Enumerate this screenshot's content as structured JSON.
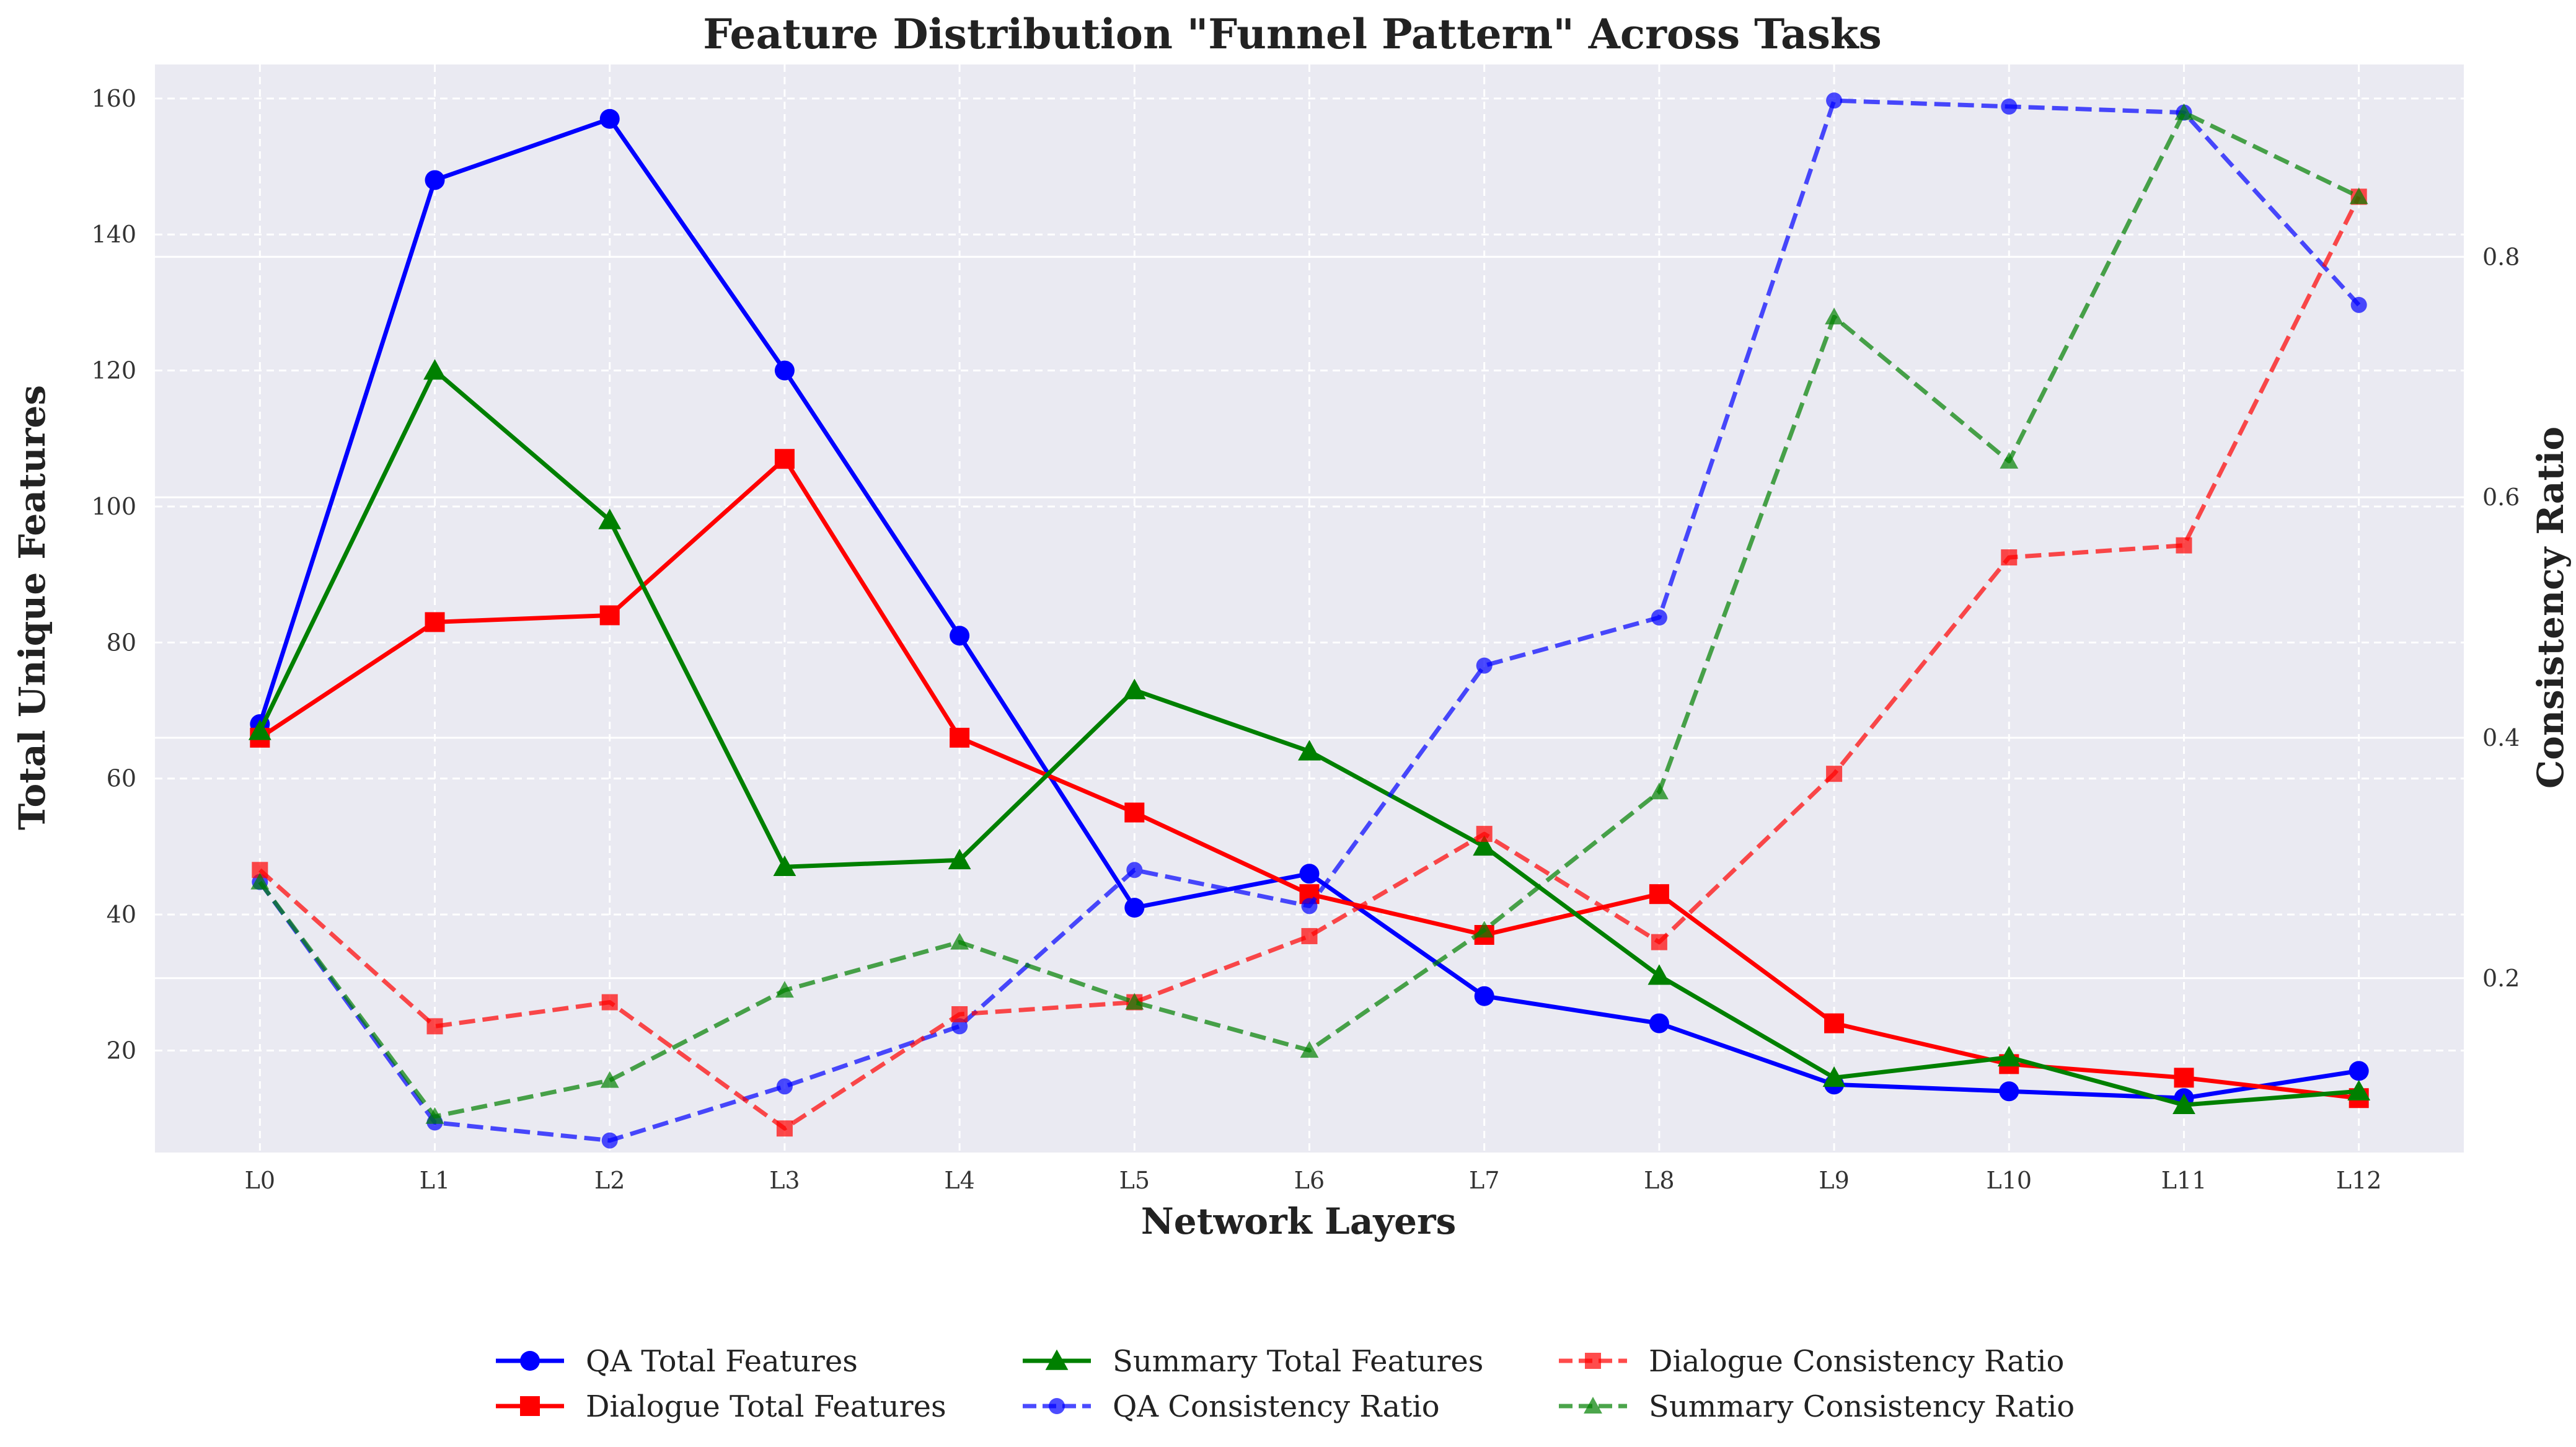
{
  "chart_data": {
    "type": "line",
    "title": "Feature Distribution \"Funnel Pattern\" Across Tasks",
    "xlabel": "Network Layers",
    "ylabel": "Total Unique Features",
    "y2label": "Consistency Ratio",
    "categories": [
      "L0",
      "L1",
      "L2",
      "L3",
      "L4",
      "L5",
      "L6",
      "L7",
      "L8",
      "L9",
      "L10",
      "L11",
      "L12"
    ],
    "ylim": [
      5,
      165
    ],
    "yticks": [
      20,
      40,
      60,
      80,
      100,
      120,
      140,
      160
    ],
    "y2lim": [
      0.055,
      0.96
    ],
    "y2ticks": [
      0.2,
      0.4,
      0.6,
      0.8
    ],
    "y2tick_labels": [
      "0.2",
      "0.4",
      "0.6",
      "0.8"
    ],
    "grid": true,
    "legend_position": "bottom-center",
    "series": [
      {
        "name": "QA Total Features",
        "axis": "left",
        "color": "#0000ff",
        "marker": "circle",
        "dashed": false,
        "values": [
          68,
          148,
          157,
          120,
          81,
          41,
          46,
          28,
          24,
          15,
          14,
          13,
          17
        ]
      },
      {
        "name": "Dialogue Total Features",
        "axis": "left",
        "color": "#ff0000",
        "marker": "square",
        "dashed": false,
        "values": [
          66,
          83,
          84,
          107,
          66,
          55,
          43,
          37,
          43,
          24,
          18,
          16,
          13
        ]
      },
      {
        "name": "Summary Total Features",
        "axis": "left",
        "color": "#008000",
        "marker": "triangle",
        "dashed": false,
        "values": [
          67,
          120,
          98,
          47,
          48,
          73,
          64,
          50,
          31,
          16,
          19,
          12,
          14
        ]
      },
      {
        "name": "QA Consistency Ratio",
        "axis": "right",
        "color": "#0000ff",
        "marker": "circle",
        "dashed": true,
        "values": [
          0.28,
          0.08,
          0.065,
          0.11,
          0.16,
          0.29,
          0.26,
          0.46,
          0.5,
          0.93,
          0.925,
          0.92,
          0.76
        ]
      },
      {
        "name": "Dialogue Consistency Ratio",
        "axis": "right",
        "color": "#ff0000",
        "marker": "square",
        "dashed": true,
        "values": [
          0.29,
          0.16,
          0.18,
          0.075,
          0.17,
          0.18,
          0.235,
          0.32,
          0.23,
          0.37,
          0.55,
          0.56,
          0.85
        ]
      },
      {
        "name": "Summary Consistency Ratio",
        "axis": "right",
        "color": "#008000",
        "marker": "triangle",
        "dashed": true,
        "values": [
          0.28,
          0.085,
          0.115,
          0.19,
          0.23,
          0.18,
          0.14,
          0.24,
          0.355,
          0.75,
          0.63,
          0.92,
          0.85
        ]
      }
    ]
  }
}
